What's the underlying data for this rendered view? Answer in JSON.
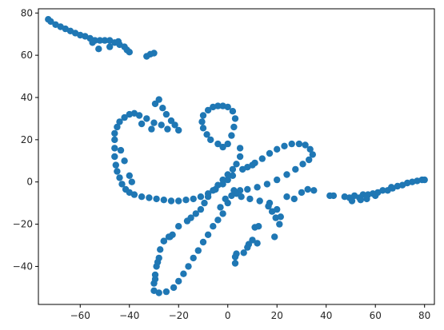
{
  "chart_data": {
    "type": "scatter",
    "title": "",
    "xlabel": "",
    "ylabel": "",
    "xlim": [
      -77,
      84
    ],
    "ylim": [
      -58,
      82
    ],
    "xticks": [
      -60,
      -40,
      -20,
      0,
      20,
      40,
      60,
      80
    ],
    "yticks": [
      -40,
      -20,
      0,
      20,
      40,
      60,
      80
    ],
    "grid": false,
    "legend": "none",
    "marker_color": "#1f77b4",
    "series": [
      {
        "points": [
          [
            -73.0,
            77.0
          ],
          [
            -72.0,
            76.0
          ],
          [
            -70.0,
            74.5
          ],
          [
            -68.0,
            73.5
          ],
          [
            -66.0,
            72.5
          ],
          [
            -64.0,
            71.5
          ],
          [
            -62.0,
            70.5
          ],
          [
            -60.0,
            69.5
          ],
          [
            -58.0,
            69.0
          ],
          [
            -56.0,
            68.0
          ],
          [
            -54.0,
            67.0
          ],
          [
            -52.0,
            67.0
          ],
          [
            -50.0,
            67.0
          ],
          [
            -48.0,
            67.0
          ],
          [
            -46.0,
            66.0
          ],
          [
            -44.0,
            65.0
          ],
          [
            -42.0,
            64.0
          ],
          [
            -41.0,
            62.5
          ],
          [
            -40.0,
            61.5
          ],
          [
            -55.0,
            66.0
          ],
          [
            -52.5,
            63.0
          ],
          [
            -48.0,
            64.0
          ],
          [
            -44.5,
            66.5
          ],
          [
            -33.0,
            59.5
          ],
          [
            -31.5,
            60.5
          ],
          [
            -30.0,
            61.0
          ],
          [
            -38.0,
            32.5
          ],
          [
            -40.0,
            32.0
          ],
          [
            -42.0,
            30.5
          ],
          [
            -44.0,
            28.5
          ],
          [
            -45.0,
            26.0
          ],
          [
            -46.0,
            23.0
          ],
          [
            -46.0,
            20.0
          ],
          [
            -46.0,
            16.0
          ],
          [
            -46.0,
            12.0
          ],
          [
            -45.5,
            8.0
          ],
          [
            -45.0,
            5.0
          ],
          [
            -44.0,
            2.0
          ],
          [
            -43.0,
            -1.0
          ],
          [
            -41.5,
            -3.5
          ],
          [
            -40.0,
            -5.0
          ],
          [
            -38.0,
            -6.0
          ],
          [
            -35.0,
            -7.0
          ],
          [
            -32.0,
            -7.5
          ],
          [
            -29.0,
            -8.0
          ],
          [
            -26.0,
            -8.5
          ],
          [
            -23.0,
            -9.0
          ],
          [
            -20.0,
            -9.0
          ],
          [
            -17.0,
            -8.5
          ],
          [
            -14.0,
            -8.0
          ],
          [
            -11.0,
            -7.0
          ],
          [
            -8.0,
            -5.5
          ],
          [
            -5.0,
            -3.5
          ],
          [
            -2.0,
            -1.0
          ],
          [
            0.0,
            1.0
          ],
          [
            2.0,
            3.0
          ],
          [
            -39.0,
            0.0
          ],
          [
            -40.0,
            3.0
          ],
          [
            -42.0,
            10.0
          ],
          [
            -43.5,
            15.0
          ],
          [
            -36.0,
            31.5
          ],
          [
            -33.0,
            30.0
          ],
          [
            -30.0,
            28.0
          ],
          [
            -27.0,
            27.0
          ],
          [
            -24.5,
            25.0
          ],
          [
            -28.0,
            39.0
          ],
          [
            -29.5,
            37.0
          ],
          [
            -26.5,
            35.0
          ],
          [
            -25.0,
            32.0
          ],
          [
            -23.0,
            29.0
          ],
          [
            -21.5,
            27.0
          ],
          [
            -20.0,
            24.5
          ],
          [
            -31.0,
            25.0
          ],
          [
            -35.0,
            27.5
          ],
          [
            -4.0,
            36.0
          ],
          [
            -6.0,
            35.5
          ],
          [
            -8.0,
            34.0
          ],
          [
            -10.0,
            31.5
          ],
          [
            -10.5,
            28.5
          ],
          [
            -10.0,
            25.5
          ],
          [
            -8.5,
            22.5
          ],
          [
            -7.0,
            20.0
          ],
          [
            -4.0,
            18.0
          ],
          [
            -2.0,
            16.5
          ],
          [
            0.0,
            18.0
          ],
          [
            1.5,
            22.0
          ],
          [
            2.5,
            26.0
          ],
          [
            3.0,
            30.0
          ],
          [
            2.0,
            33.5
          ],
          [
            0.0,
            35.5
          ],
          [
            -2.0,
            36.0
          ],
          [
            5.0,
            16.0
          ],
          [
            5.0,
            12.0
          ],
          [
            3.5,
            8.5
          ],
          [
            2.0,
            6.0
          ],
          [
            0.0,
            3.5
          ],
          [
            -2.0,
            1.0
          ],
          [
            -4.0,
            -1.5
          ],
          [
            -6.0,
            -4.0
          ],
          [
            -8.0,
            -7.0
          ],
          [
            -9.5,
            -10.0
          ],
          [
            -11.0,
            -13.0
          ],
          [
            -13.0,
            -15.0
          ],
          [
            -15.0,
            -17.0
          ],
          [
            -16.5,
            -18.5
          ],
          [
            -20.0,
            -21.0
          ],
          [
            -23.5,
            -26.0
          ],
          [
            -26.0,
            -28.0
          ],
          [
            8.0,
            7.0
          ],
          [
            11.0,
            9.0
          ],
          [
            14.0,
            11.0
          ],
          [
            17.0,
            13.5
          ],
          [
            20.0,
            15.5
          ],
          [
            23.0,
            17.0
          ],
          [
            26.0,
            18.0
          ],
          [
            29.0,
            18.0
          ],
          [
            31.5,
            17.5
          ],
          [
            33.5,
            15.5
          ],
          [
            34.5,
            13.0
          ],
          [
            33.0,
            10.5
          ],
          [
            30.5,
            8.5
          ],
          [
            27.5,
            6.0
          ],
          [
            24.0,
            3.5
          ],
          [
            20.0,
            1.0
          ],
          [
            16.0,
            -1.0
          ],
          [
            12.0,
            -2.5
          ],
          [
            8.0,
            -3.5
          ],
          [
            5.0,
            -4.0
          ],
          [
            3.5,
            -5.5
          ],
          [
            5.5,
            -7.0
          ],
          [
            9.0,
            -8.0
          ],
          [
            13.0,
            -9.0
          ],
          [
            17.0,
            -10.0
          ],
          [
            20.0,
            -13.0
          ],
          [
            21.5,
            -16.5
          ],
          [
            21.0,
            -20.0
          ],
          [
            19.5,
            -17.0
          ],
          [
            18.0,
            -14.0
          ],
          [
            16.5,
            -11.5
          ],
          [
            6.0,
            6.0
          ],
          [
            10.0,
            8.0
          ],
          [
            24.0,
            -7.0
          ],
          [
            27.0,
            -8.0
          ],
          [
            30.0,
            -5.0
          ],
          [
            32.5,
            -3.5
          ],
          [
            35.0,
            -4.0
          ],
          [
            12.5,
            -21.0
          ],
          [
            11.0,
            -21.5
          ],
          [
            10.0,
            -27.5
          ],
          [
            12.0,
            -29.0
          ],
          [
            8.5,
            -29.5
          ],
          [
            8.0,
            -31.0
          ],
          [
            6.5,
            -33.5
          ],
          [
            3.5,
            -34.0
          ],
          [
            3.0,
            -35.5
          ],
          [
            3.0,
            -38.5
          ],
          [
            19.0,
            -26.0
          ],
          [
            -2.0,
            -15.0
          ],
          [
            -4.0,
            -18.0
          ],
          [
            -6.0,
            -21.0
          ],
          [
            -8.0,
            -25.0
          ],
          [
            -10.0,
            -28.5
          ],
          [
            -12.0,
            -32.5
          ],
          [
            -14.0,
            -36.0
          ],
          [
            -16.0,
            -40.0
          ],
          [
            -18.0,
            -43.5
          ],
          [
            -20.0,
            -47.0
          ],
          [
            -22.0,
            -50.0
          ],
          [
            -25.0,
            -52.0
          ],
          [
            -28.0,
            -52.5
          ],
          [
            -30.0,
            -51.5
          ],
          [
            -30.0,
            -48.0
          ],
          [
            -29.5,
            -44.0
          ],
          [
            -29.0,
            -40.0
          ],
          [
            -28.0,
            -36.0
          ],
          [
            -27.5,
            -32.0
          ],
          [
            -26.0,
            -28.0
          ],
          [
            -24.0,
            -26.0
          ],
          [
            -22.5,
            -25.0
          ],
          [
            -29.5,
            -46.0
          ],
          [
            -28.5,
            -38.0
          ],
          [
            -3.0,
            -12.0
          ],
          [
            0.0,
            -10.0
          ],
          [
            1.5,
            -6.5
          ],
          [
            2.5,
            -4.0
          ],
          [
            -1.0,
            -8.0
          ],
          [
            41.5,
            -6.5
          ],
          [
            43.0,
            -6.5
          ],
          [
            47.5,
            -7.0
          ],
          [
            49.5,
            -7.5
          ],
          [
            51.5,
            -6.5
          ],
          [
            53.5,
            -7.5
          ],
          [
            55.0,
            -6.0
          ],
          [
            57.0,
            -6.0
          ],
          [
            59.0,
            -5.5
          ],
          [
            61.0,
            -5.0
          ],
          [
            63.0,
            -4.0
          ],
          [
            65.0,
            -4.0
          ],
          [
            67.0,
            -3.0
          ],
          [
            69.0,
            -2.0
          ],
          [
            71.0,
            -1.5
          ],
          [
            73.0,
            -0.5
          ],
          [
            75.0,
            0.0
          ],
          [
            77.0,
            0.5
          ],
          [
            79.0,
            1.0
          ],
          [
            80.0,
            1.0
          ],
          [
            54.0,
            -8.5
          ],
          [
            56.5,
            -8.0
          ],
          [
            60.0,
            -6.5
          ],
          [
            66.5,
            -2.5
          ],
          [
            50.5,
            -9.0
          ]
        ]
      }
    ]
  }
}
